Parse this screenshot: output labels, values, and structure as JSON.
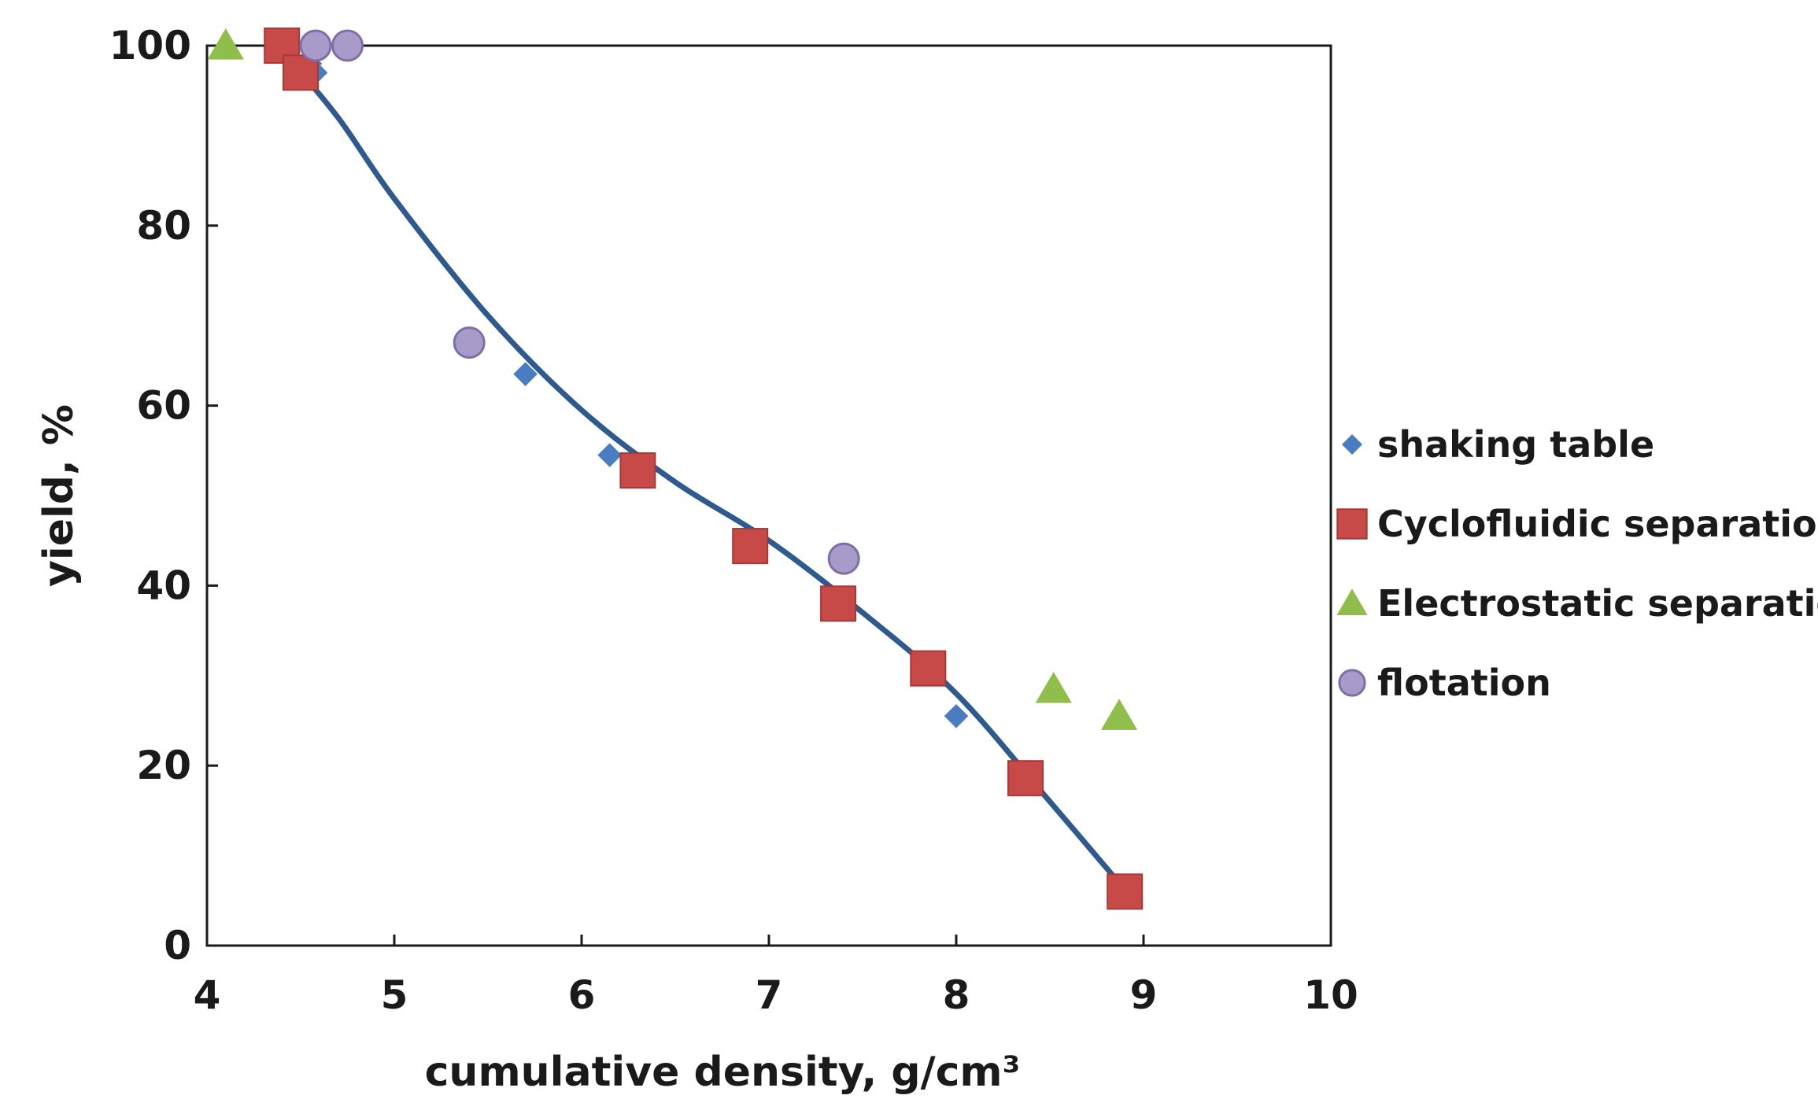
{
  "chart_data": {
    "type": "scatter",
    "title": "",
    "xlabel": "cumulative density, g/cm³",
    "ylabel": "yield, %",
    "xlim": [
      4,
      10
    ],
    "ylim": [
      0,
      100
    ],
    "x_ticks": [
      4,
      5,
      6,
      7,
      8,
      9,
      10
    ],
    "y_ticks": [
      0,
      20,
      40,
      60,
      80,
      100
    ],
    "grid": false,
    "legend_position": "right",
    "series": [
      {
        "name": "shaking table",
        "marker": "diamond",
        "color": "#4a7cc2",
        "points": [
          [
            4.55,
            98
          ],
          [
            4.58,
            97
          ],
          [
            5.7,
            63.5
          ],
          [
            6.15,
            54.5
          ],
          [
            8.0,
            25.5
          ]
        ]
      },
      {
        "name": "Cyclofluidic separation",
        "marker": "square",
        "color": "#c84a48",
        "points": [
          [
            4.4,
            100
          ],
          [
            4.5,
            97
          ],
          [
            6.3,
            52.8
          ],
          [
            6.9,
            44.4
          ],
          [
            7.37,
            38
          ],
          [
            7.85,
            30.8
          ],
          [
            8.37,
            18.6
          ],
          [
            8.9,
            6
          ]
        ]
      },
      {
        "name": "Electrostatic separation",
        "marker": "triangle",
        "color": "#8fbf4a",
        "points": [
          [
            4.1,
            100
          ],
          [
            8.52,
            28.5
          ],
          [
            8.87,
            25.5
          ]
        ]
      },
      {
        "name": "flotation",
        "marker": "circle",
        "color": "#a99bc9",
        "points": [
          [
            4.58,
            100
          ],
          [
            4.75,
            100
          ],
          [
            5.4,
            67
          ],
          [
            7.4,
            43
          ]
        ]
      }
    ],
    "trendline": {
      "color": "#2e5a8f",
      "points": [
        [
          4.42,
          99
        ],
        [
          4.7,
          92
        ],
        [
          5.0,
          83
        ],
        [
          5.5,
          70
        ],
        [
          6.0,
          59.5
        ],
        [
          6.5,
          51.5
        ],
        [
          7.0,
          45
        ],
        [
          7.5,
          37
        ],
        [
          8.0,
          28
        ],
        [
          8.5,
          16
        ],
        [
          8.95,
          5
        ]
      ]
    }
  }
}
